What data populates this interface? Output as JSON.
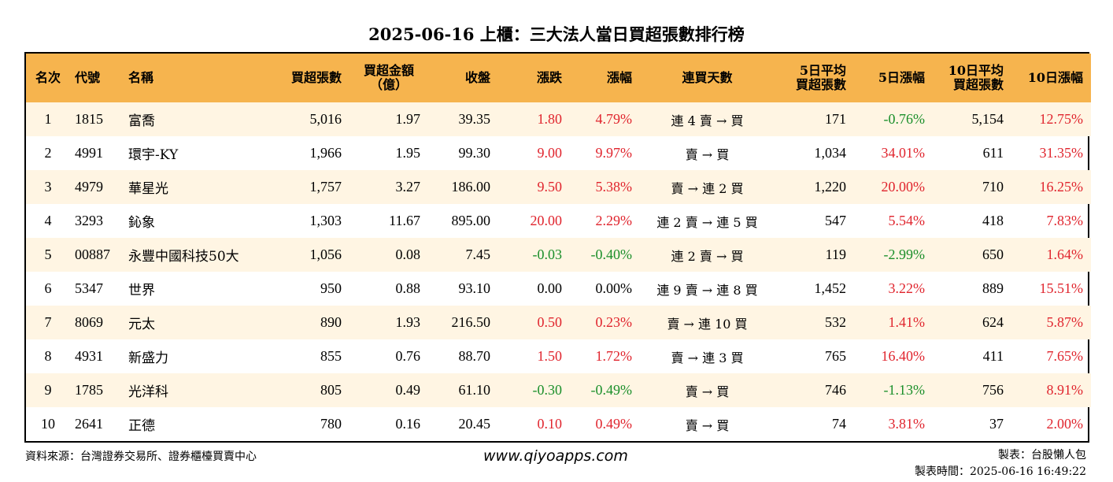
{
  "title": "2025-06-16 上櫃：三大法人當日買超張數排行榜",
  "colors": {
    "header_bg": "#f6b44e",
    "alt_row_bg": "#fff5e3",
    "up": "#e0242d",
    "down": "#1a8f2a"
  },
  "headers": {
    "rank": "名次",
    "code": "代號",
    "name": "名稱",
    "net_buy_lots": "買超張數",
    "net_buy_amount_l1": "買超金額",
    "net_buy_amount_l2": "（億）",
    "close": "收盤",
    "change": "漲跌",
    "change_pct": "漲幅",
    "consecutive_days": "連買天數",
    "avg5_l1": "5日平均",
    "avg5_l2": "買超張數",
    "chg5": "5日漲幅",
    "avg10_l1": "10日平均",
    "avg10_l2": "買超張數",
    "chg10": "10日漲幅"
  },
  "rows": [
    {
      "rank": "1",
      "code": "1815",
      "name": "富喬",
      "lots": "5,016",
      "amount": "1.97",
      "close": "39.35",
      "change": "1.80",
      "change_dir": "up",
      "pct": "4.79%",
      "pct_dir": "up",
      "days": "連 4 賣 → 買",
      "avg5": "171",
      "chg5": "-0.76%",
      "chg5_dir": "down",
      "avg10": "5,154",
      "chg10": "12.75%",
      "chg10_dir": "up"
    },
    {
      "rank": "2",
      "code": "4991",
      "name": "環宇-KY",
      "lots": "1,966",
      "amount": "1.95",
      "close": "99.30",
      "change": "9.00",
      "change_dir": "up",
      "pct": "9.97%",
      "pct_dir": "up",
      "days": "賣 → 買",
      "avg5": "1,034",
      "chg5": "34.01%",
      "chg5_dir": "up",
      "avg10": "611",
      "chg10": "31.35%",
      "chg10_dir": "up"
    },
    {
      "rank": "3",
      "code": "4979",
      "name": "華星光",
      "lots": "1,757",
      "amount": "3.27",
      "close": "186.00",
      "change": "9.50",
      "change_dir": "up",
      "pct": "5.38%",
      "pct_dir": "up",
      "days": "賣 → 連 2 買",
      "avg5": "1,220",
      "chg5": "20.00%",
      "chg5_dir": "up",
      "avg10": "710",
      "chg10": "16.25%",
      "chg10_dir": "up"
    },
    {
      "rank": "4",
      "code": "3293",
      "name": "鈊象",
      "lots": "1,303",
      "amount": "11.67",
      "close": "895.00",
      "change": "20.00",
      "change_dir": "up",
      "pct": "2.29%",
      "pct_dir": "up",
      "days": "連 2 賣 → 連 5 買",
      "avg5": "547",
      "chg5": "5.54%",
      "chg5_dir": "up",
      "avg10": "418",
      "chg10": "7.83%",
      "chg10_dir": "up"
    },
    {
      "rank": "5",
      "code": "00887",
      "name": "永豐中國科技50大",
      "lots": "1,056",
      "amount": "0.08",
      "close": "7.45",
      "change": "-0.03",
      "change_dir": "down",
      "pct": "-0.40%",
      "pct_dir": "down",
      "days": "連 2 賣 → 買",
      "avg5": "119",
      "chg5": "-2.99%",
      "chg5_dir": "down",
      "avg10": "650",
      "chg10": "1.64%",
      "chg10_dir": "up"
    },
    {
      "rank": "6",
      "code": "5347",
      "name": "世界",
      "lots": "950",
      "amount": "0.88",
      "close": "93.10",
      "change": "0.00",
      "change_dir": "flat",
      "pct": "0.00%",
      "pct_dir": "flat",
      "days": "連 9 賣 → 連 8 買",
      "avg5": "1,452",
      "chg5": "3.22%",
      "chg5_dir": "up",
      "avg10": "889",
      "chg10": "15.51%",
      "chg10_dir": "up"
    },
    {
      "rank": "7",
      "code": "8069",
      "name": "元太",
      "lots": "890",
      "amount": "1.93",
      "close": "216.50",
      "change": "0.50",
      "change_dir": "up",
      "pct": "0.23%",
      "pct_dir": "up",
      "days": "賣 → 連 10 買",
      "avg5": "532",
      "chg5": "1.41%",
      "chg5_dir": "up",
      "avg10": "624",
      "chg10": "5.87%",
      "chg10_dir": "up"
    },
    {
      "rank": "8",
      "code": "4931",
      "name": "新盛力",
      "lots": "855",
      "amount": "0.76",
      "close": "88.70",
      "change": "1.50",
      "change_dir": "up",
      "pct": "1.72%",
      "pct_dir": "up",
      "days": "賣 → 連 3 買",
      "avg5": "765",
      "chg5": "16.40%",
      "chg5_dir": "up",
      "avg10": "411",
      "chg10": "7.65%",
      "chg10_dir": "up"
    },
    {
      "rank": "9",
      "code": "1785",
      "name": "光洋科",
      "lots": "805",
      "amount": "0.49",
      "close": "61.10",
      "change": "-0.30",
      "change_dir": "down",
      "pct": "-0.49%",
      "pct_dir": "down",
      "days": "賣 → 買",
      "avg5": "746",
      "chg5": "-1.13%",
      "chg5_dir": "down",
      "avg10": "756",
      "chg10": "8.91%",
      "chg10_dir": "up"
    },
    {
      "rank": "10",
      "code": "2641",
      "name": "正德",
      "lots": "780",
      "amount": "0.16",
      "close": "20.45",
      "change": "0.10",
      "change_dir": "up",
      "pct": "0.49%",
      "pct_dir": "up",
      "days": "賣 → 買",
      "avg5": "74",
      "chg5": "3.81%",
      "chg5_dir": "up",
      "avg10": "37",
      "chg10": "2.00%",
      "chg10_dir": "up"
    }
  ],
  "footer": {
    "source": "資料來源：台灣證券交易所、證券櫃檯買賣中心",
    "website": "www.qiyoapps.com",
    "maker": "製表：台股懶人包",
    "made_time": "製表時間：2025-06-16 16:49:22"
  }
}
